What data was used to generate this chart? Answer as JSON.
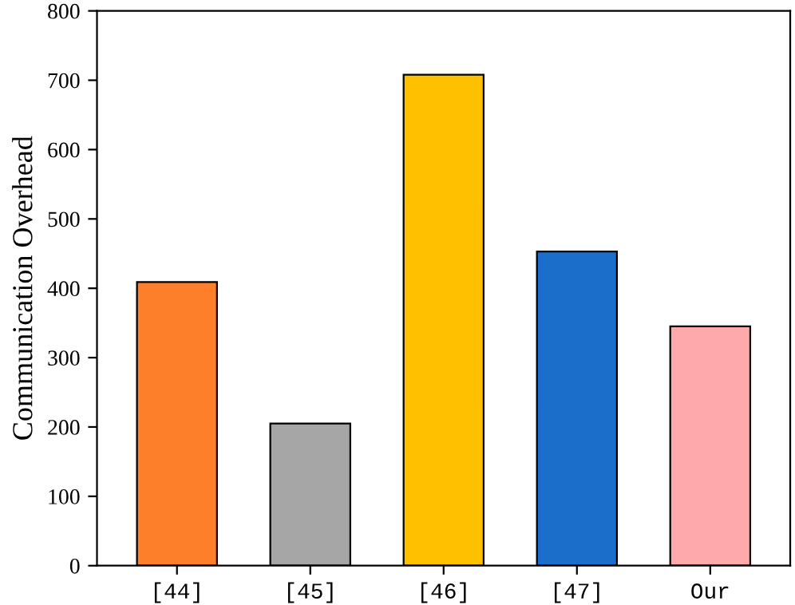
{
  "chart_data": {
    "type": "bar",
    "ylabel": "Communication Overhead",
    "categories": [
      "[44]",
      "[45]",
      "[46]",
      "[47]",
      "Our"
    ],
    "values": [
      409,
      205,
      708,
      453,
      345
    ],
    "colors": [
      "#fd7f29",
      "#a6a6a6",
      "#ffc000",
      "#1b6fcb",
      "#ffaaaa"
    ],
    "ylim": [
      0,
      800
    ],
    "yticks": [
      0,
      100,
      200,
      300,
      400,
      500,
      600,
      700,
      800
    ],
    "grid": false
  }
}
